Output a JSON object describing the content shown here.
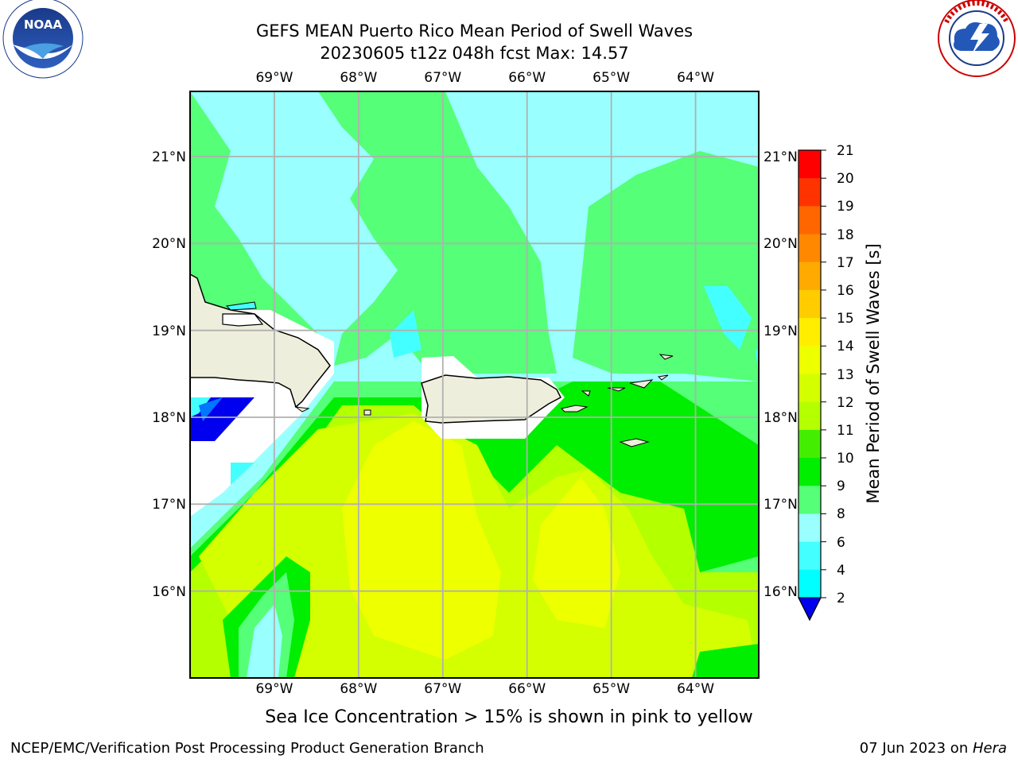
{
  "header": {
    "title_line1": "GEFS MEAN Puerto Rico Mean Period of Swell Waves",
    "title_line2": "20230605 t12z 048h fcst   Max: 14.57"
  },
  "logos": {
    "left": {
      "name": "noaa-logo",
      "text": "NOAA",
      "ring_text": "NATIONAL OCEANIC AND ATMOSPHERIC ADMINISTRATION · U.S. DEPARTMENT OF COMMERCE"
    },
    "right": {
      "name": "nws-logo",
      "ring_text": "NATIONAL WEATHER SERVICE"
    }
  },
  "map": {
    "lon_labels": [
      "69°W",
      "68°W",
      "67°W",
      "66°W",
      "65°W",
      "64°W"
    ],
    "lat_labels": [
      "21°N",
      "20°N",
      "19°N",
      "18°N",
      "17°N",
      "16°N"
    ],
    "lon_values": [
      -69,
      -68,
      -67,
      -66,
      -65,
      -64
    ],
    "lat_values": [
      21,
      20,
      19,
      18,
      17,
      16
    ],
    "lon_range": [
      -70.0,
      -63.25
    ],
    "lat_range": [
      15.0,
      21.75
    ],
    "land_color": "#eeeedc",
    "gridline_color": "#b0b0b0"
  },
  "colorbar": {
    "label": "Mean Period of Swell Waves [s]",
    "ticks": [
      "21",
      "20",
      "19",
      "18",
      "17",
      "16",
      "15",
      "14",
      "13",
      "12",
      "11",
      "10",
      "9",
      "8",
      "6",
      "4",
      "2"
    ],
    "colors": [
      "#ff0000",
      "#ff3300",
      "#ff6600",
      "#ff8800",
      "#ffaa00",
      "#ffcc00",
      "#ffee00",
      "#eeff00",
      "#d4ff00",
      "#b4ff00",
      "#44ee00",
      "#00ee00",
      "#55ff77",
      "#99ffff",
      "#44ffff",
      "#00ffff",
      "#0077ff"
    ],
    "extend_color": "#0000ee"
  },
  "chart_data": {
    "type": "heatmap",
    "title": "GEFS MEAN Puerto Rico Mean Period of Swell Waves",
    "subtitle": "20230605 t12z 048h fcst   Max: 14.57",
    "xlabel": "",
    "ylabel": "",
    "colorbar_label": "Mean Period of Swell Waves [s]",
    "levels": [
      2,
      4,
      6,
      8,
      9,
      10,
      11,
      12,
      13,
      14,
      15,
      16,
      17,
      18,
      19,
      20,
      21
    ],
    "max": 14.57,
    "xlim": [
      -70.0,
      -63.25
    ],
    "ylim": [
      15.0,
      21.75
    ],
    "regions": [
      {
        "area": "north of 18.5°N (open Atlantic)",
        "period_range": [
          8,
          9
        ]
      },
      {
        "area": "bands near 69°W/20°N and 65°W",
        "period_range": [
          9,
          10
        ]
      },
      {
        "area": "central Caribbean south of Puerto Rico",
        "period_range": [
          13,
          14
        ]
      },
      {
        "area": "around Virgin Islands",
        "period_range": [
          10,
          11
        ]
      },
      {
        "area": "southwest corner near 69.5°W/16°N",
        "period_range": [
          8,
          9
        ]
      }
    ]
  },
  "footer": {
    "caption": "Sea Ice Concentration > 15% is shown in pink to yellow",
    "left": "NCEP/EMC/Verification Post Processing Product Generation Branch",
    "right_date": "07 Jun 2023 on ",
    "right_machine": "Hera"
  }
}
